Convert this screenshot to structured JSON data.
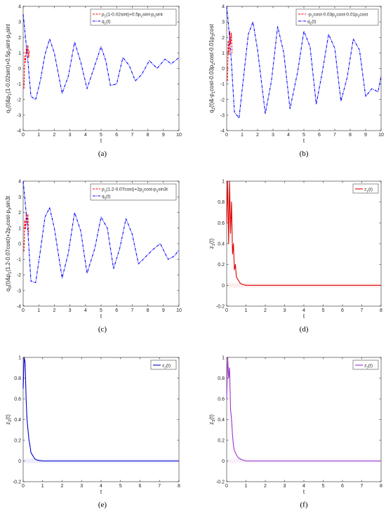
{
  "chart_data": [
    {
      "type": "line",
      "panel": "(a)",
      "xlabel": "t",
      "ylabel": "q_1(t)&p_1(1-0.02sint)+0.5p_2sint-p_3sint",
      "xlim": [
        0,
        10
      ],
      "ylim": [
        -4,
        4
      ],
      "xticks": [
        0,
        1,
        2,
        3,
        4,
        5,
        6,
        7,
        8,
        9,
        10
      ],
      "yticks": [
        -4,
        -3,
        -2,
        -1,
        0,
        1,
        2,
        3,
        4
      ],
      "legend_position": "top-right",
      "series": [
        {
          "name": "p_1(1-0.02sint)+0.5p_2sint-p_3sint",
          "color": "#ff0000",
          "style": "dashed",
          "x": [
            0.05,
            0.1,
            0.15,
            0.2,
            0.25,
            0.3,
            0.35,
            0.4
          ],
          "y": [
            -1.3,
            0.8,
            0.4,
            1.3,
            0.9,
            1.5,
            0.7,
            1.2
          ]
        },
        {
          "name": "q_1(t)",
          "color": "#0000ff",
          "style": "dashdot",
          "x": [
            0,
            0.1,
            0.3,
            0.5,
            0.8,
            1.1,
            1.4,
            1.7,
            2.0,
            2.5,
            2.9,
            3.3,
            3.7,
            4.1,
            4.6,
            5.0,
            5.3,
            5.6,
            6.0,
            6.4,
            6.8,
            7.2,
            7.6,
            8.1,
            8.6,
            9.1,
            9.5,
            10
          ],
          "y": [
            3.5,
            2.5,
            0.5,
            -1.8,
            -2.0,
            -0.8,
            0.9,
            1.9,
            1.0,
            -1.6,
            -0.5,
            1.7,
            0.4,
            -1.3,
            0.2,
            1.4,
            0.5,
            -1.1,
            -1.0,
            0.7,
            0.2,
            -0.8,
            -0.4,
            0.5,
            0.0,
            0.6,
            0.3,
            0.7
          ]
        }
      ]
    },
    {
      "type": "line",
      "panel": "(b)",
      "xlabel": "t",
      "ylabel": "q_2(t)&-p_1cost-0.03p_2cost-0.01p_3cost",
      "xlim": [
        0,
        10
      ],
      "ylim": [
        -4,
        4
      ],
      "xticks": [
        0,
        1,
        2,
        3,
        4,
        5,
        6,
        7,
        8,
        9,
        10
      ],
      "yticks": [
        -4,
        -3,
        -2,
        -1,
        0,
        1,
        2,
        3,
        4
      ],
      "legend_position": "top-right",
      "series": [
        {
          "name": "-p_1cost-0.03p_2cost-0.01p_3cost",
          "color": "#ff0000",
          "style": "dashed",
          "x": [
            0.05,
            0.1,
            0.15,
            0.2,
            0.25,
            0.3,
            0.35
          ],
          "y": [
            -0.8,
            1.8,
            0.9,
            2.4,
            1.6,
            2.3,
            1.0
          ]
        },
        {
          "name": "q_2(t)",
          "color": "#0000ff",
          "style": "dashdot",
          "x": [
            0,
            0.1,
            0.3,
            0.5,
            0.8,
            1.1,
            1.4,
            1.7,
            2.0,
            2.5,
            2.9,
            3.3,
            3.7,
            4.1,
            4.6,
            5.0,
            5.4,
            5.8,
            6.2,
            6.6,
            7.0,
            7.4,
            7.8,
            8.2,
            8.6,
            9.0,
            9.4,
            9.8,
            10
          ],
          "y": [
            4.0,
            3.0,
            0.5,
            -2.8,
            -3.2,
            -0.5,
            2.2,
            3.0,
            1.2,
            -2.9,
            -0.8,
            2.7,
            1.0,
            -2.6,
            -0.2,
            2.4,
            1.4,
            -2.3,
            -0.2,
            2.2,
            1.3,
            -2.1,
            -0.6,
            1.9,
            1.2,
            -1.8,
            -1.3,
            -1.5,
            -0.5
          ]
        }
      ]
    },
    {
      "type": "line",
      "panel": "(c)",
      "xlabel": "t",
      "ylabel": "q_3(t)&p_1(1.2-0.07cost)+2p_2cost-p_3sin3t",
      "xlim": [
        0,
        10
      ],
      "ylim": [
        -4,
        4
      ],
      "xticks": [
        0,
        1,
        2,
        3,
        4,
        5,
        6,
        7,
        8,
        9,
        10
      ],
      "yticks": [
        -4,
        -3,
        -2,
        -1,
        0,
        1,
        2,
        3,
        4
      ],
      "legend_position": "top-right",
      "series": [
        {
          "name": "p_1(1.2-0.07cost)+2p_2cost-p_3sin3t",
          "color": "#ff0000",
          "style": "dashed",
          "x": [
            0.05,
            0.1,
            0.15,
            0.2,
            0.25,
            0.3,
            0.35
          ],
          "y": [
            -0.5,
            1.5,
            0.9,
            2.0,
            1.3,
            1.9,
            0.6
          ]
        },
        {
          "name": "q_3(t)",
          "color": "#0000ff",
          "style": "dashdot",
          "x": [
            0,
            0.1,
            0.3,
            0.5,
            0.8,
            1.1,
            1.4,
            1.7,
            2.0,
            2.5,
            2.9,
            3.3,
            3.7,
            4.1,
            4.6,
            5.0,
            5.4,
            5.8,
            6.2,
            6.6,
            7.0,
            7.4,
            7.8,
            8.3,
            8.8,
            9.3,
            9.7,
            10
          ],
          "y": [
            4.0,
            3.0,
            0.8,
            -2.4,
            -2.5,
            -0.5,
            1.7,
            2.3,
            1.0,
            -2.2,
            -0.6,
            2.0,
            0.8,
            -1.9,
            -0.3,
            1.7,
            1.0,
            -1.6,
            -0.3,
            1.6,
            0.6,
            -1.3,
            -0.9,
            -0.4,
            0.0,
            -1.0,
            -0.8,
            -0.4
          ]
        }
      ]
    },
    {
      "type": "line",
      "panel": "(d)",
      "xlabel": "t",
      "ylabel": "z_1(t)",
      "xlim": [
        0,
        8
      ],
      "ylim": [
        -0.2,
        1
      ],
      "xticks": [
        0,
        1,
        2,
        3,
        4,
        5,
        6,
        7,
        8
      ],
      "yticks": [
        -0.2,
        0,
        0.2,
        0.4,
        0.6,
        0.8,
        1
      ],
      "legend_position": "top-right",
      "series": [
        {
          "name": "z_1(t)",
          "color": "#dd0000",
          "style": "solid",
          "x": [
            0,
            0.05,
            0.1,
            0.15,
            0.2,
            0.25,
            0.3,
            0.35,
            0.4,
            0.45,
            0.5,
            0.6,
            0.7,
            0.8,
            1.0,
            1.5,
            8
          ],
          "y": [
            0.6,
            1.0,
            0.4,
            1.0,
            0.5,
            0.8,
            0.3,
            0.4,
            0.15,
            0.2,
            0.08,
            0.05,
            0.02,
            0.01,
            0.0,
            0.0,
            0.0
          ]
        }
      ]
    },
    {
      "type": "line",
      "panel": "(e)",
      "xlabel": "t",
      "ylabel": "z_2(t)",
      "xlim": [
        0,
        8
      ],
      "ylim": [
        -0.2,
        1
      ],
      "xticks": [
        0,
        1,
        2,
        3,
        4,
        5,
        6,
        7,
        8
      ],
      "yticks": [
        -0.2,
        0,
        0.2,
        0.4,
        0.6,
        0.8,
        1
      ],
      "legend_position": "top-right",
      "series": [
        {
          "name": "z_2(t)",
          "color": "#0000cc",
          "style": "solid",
          "x": [
            0,
            0.05,
            0.1,
            0.15,
            0.2,
            0.25,
            0.3,
            0.35,
            0.4,
            0.5,
            0.6,
            0.7,
            0.8,
            1.0,
            1.5,
            8
          ],
          "y": [
            0.7,
            1.0,
            0.95,
            0.6,
            0.4,
            0.3,
            0.2,
            0.15,
            0.08,
            0.05,
            0.02,
            0.01,
            0.005,
            0.0,
            0.0,
            0.0
          ]
        }
      ]
    },
    {
      "type": "line",
      "panel": "(f)",
      "xlabel": "t",
      "ylabel": "z_3(t)",
      "xlim": [
        0,
        8
      ],
      "ylim": [
        -0.2,
        1
      ],
      "xticks": [
        0,
        1,
        2,
        3,
        4,
        5,
        6,
        7,
        8
      ],
      "yticks": [
        -0.2,
        0,
        0.2,
        0.4,
        0.6,
        0.8,
        1
      ],
      "legend_position": "top-right",
      "series": [
        {
          "name": "z_3(t)",
          "color": "#9933cc",
          "style": "solid",
          "x": [
            0,
            0.05,
            0.1,
            0.15,
            0.2,
            0.25,
            0.3,
            0.35,
            0.4,
            0.5,
            0.6,
            0.7,
            0.8,
            1.0,
            1.5,
            8
          ],
          "y": [
            0.6,
            1.0,
            0.8,
            0.9,
            0.5,
            0.4,
            0.25,
            0.15,
            0.1,
            0.06,
            0.03,
            0.02,
            0.01,
            0.0,
            0.0,
            0.0
          ]
        }
      ]
    }
  ]
}
